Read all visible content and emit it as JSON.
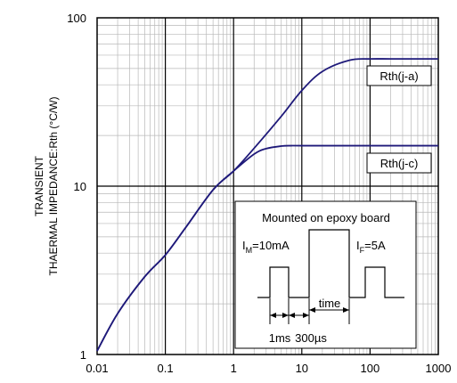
{
  "chart_data": {
    "type": "line",
    "x_scale": "log",
    "y_scale": "log",
    "xlim": [
      0.01,
      1000
    ],
    "ylim": [
      1,
      100
    ],
    "x_ticks": [
      "0.01",
      "0.1",
      "1",
      "10",
      "100",
      "1000"
    ],
    "y_ticks": [
      "1",
      "10",
      "100"
    ],
    "ylabel_lines": [
      "TRANSIENT",
      "THAERMAL IMPEDANCE:Rth (°C/W)"
    ],
    "xlabel": "",
    "grid": true,
    "line_color": "#1f1a7a",
    "series": [
      {
        "name": "Rth(j-a)",
        "x": [
          0.01,
          0.02,
          0.05,
          0.1,
          0.2,
          0.5,
          1,
          2,
          5,
          10,
          20,
          50,
          100,
          200,
          500,
          1000
        ],
        "y": [
          1.05,
          1.75,
          2.9,
          3.9,
          5.7,
          9.5,
          12.3,
          16.8,
          26,
          37,
          48,
          56,
          57,
          57,
          57,
          57
        ]
      },
      {
        "name": "Rth(j-c)",
        "x": [
          0.01,
          0.02,
          0.05,
          0.1,
          0.2,
          0.5,
          1,
          2,
          3,
          5,
          7,
          10,
          100,
          1000
        ],
        "y": [
          1.05,
          1.75,
          2.9,
          3.9,
          5.7,
          9.5,
          12.3,
          15.5,
          16.7,
          17.3,
          17.4,
          17.4,
          17.4,
          17.4
        ]
      }
    ],
    "inset": {
      "title": "Mounted on epoxy board",
      "im_label_main": "I",
      "im_label_sub": "M",
      "im_label_val": "=10mA",
      "if_label_main": "I",
      "if_label_sub": "F",
      "if_label_val": "=5A",
      "time_label": "time",
      "ms_label": "1ms",
      "us_label": "300µs"
    }
  }
}
